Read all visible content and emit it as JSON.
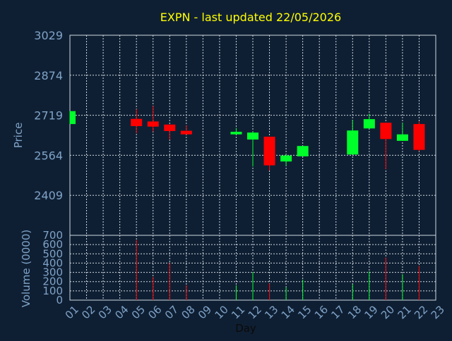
{
  "chart_data": {
    "type": "candlestick",
    "title": "EXPN - last updated 22/05/2026",
    "xlabel": "Day",
    "ylabel": "Price",
    "volume_label": "Volume (0000)",
    "x": [
      "01",
      "02",
      "03",
      "04",
      "05",
      "06",
      "07",
      "08",
      "09",
      "10",
      "11",
      "12",
      "13",
      "14",
      "15",
      "16",
      "17",
      "18",
      "19",
      "20",
      "21",
      "22",
      "23"
    ],
    "price_ticks": [
      2409,
      2564,
      2719,
      2874,
      3029
    ],
    "ylim": [
      2254,
      3029
    ],
    "volume_ticks": [
      0,
      100,
      200,
      300,
      400,
      500,
      600,
      700
    ],
    "volume_ylim": [
      0,
      700
    ],
    "grid": true,
    "candles": [
      {
        "day": "01",
        "open": 2685,
        "high": 2735,
        "low": 2685,
        "close": 2735
      },
      {
        "day": "05",
        "open": 2705,
        "high": 2743,
        "low": 2650,
        "close": 2677
      },
      {
        "day": "06",
        "open": 2695,
        "high": 2755,
        "low": 2656,
        "close": 2675
      },
      {
        "day": "07",
        "open": 2683,
        "high": 2683,
        "low": 2625,
        "close": 2658
      },
      {
        "day": "08",
        "open": 2659,
        "high": 2680,
        "low": 2645,
        "close": 2645
      },
      {
        "day": "11",
        "open": 2645,
        "high": 2670,
        "low": 2645,
        "close": 2655
      },
      {
        "day": "12",
        "open": 2625,
        "high": 2656,
        "low": 2520,
        "close": 2652
      },
      {
        "day": "13",
        "open": 2636,
        "high": 2636,
        "low": 2505,
        "close": 2525
      },
      {
        "day": "14",
        "open": 2540,
        "high": 2568,
        "low": 2524,
        "close": 2563
      },
      {
        "day": "15",
        "open": 2560,
        "high": 2600,
        "low": 2560,
        "close": 2600
      },
      {
        "day": "18",
        "open": 2567,
        "high": 2700,
        "low": 2567,
        "close": 2660
      },
      {
        "day": "19",
        "open": 2668,
        "high": 2725,
        "low": 2668,
        "close": 2704
      },
      {
        "day": "20",
        "open": 2690,
        "high": 2690,
        "low": 2510,
        "close": 2627
      },
      {
        "day": "21",
        "open": 2620,
        "high": 2690,
        "low": 2620,
        "close": 2645
      },
      {
        "day": "22",
        "open": 2685,
        "high": 2695,
        "low": 2580,
        "close": 2585
      }
    ],
    "volume": [
      {
        "day": "01",
        "value": 0
      },
      {
        "day": "05",
        "value": 650
      },
      {
        "day": "06",
        "value": 250
      },
      {
        "day": "07",
        "value": 400
      },
      {
        "day": "08",
        "value": 160
      },
      {
        "day": "11",
        "value": 160
      },
      {
        "day": "12",
        "value": 300
      },
      {
        "day": "13",
        "value": 180
      },
      {
        "day": "14",
        "value": 140
      },
      {
        "day": "15",
        "value": 220
      },
      {
        "day": "18",
        "value": 170
      },
      {
        "day": "19",
        "value": 310
      },
      {
        "day": "20",
        "value": 460
      },
      {
        "day": "21",
        "value": 280
      },
      {
        "day": "22",
        "value": 370
      }
    ],
    "colors": {
      "background": "#0f1f33",
      "up": "#00ff2a",
      "down": "#ff0000",
      "title": "#ffff00",
      "axis_text": "#7fa3c8",
      "grid": "#cfd8e0"
    }
  }
}
